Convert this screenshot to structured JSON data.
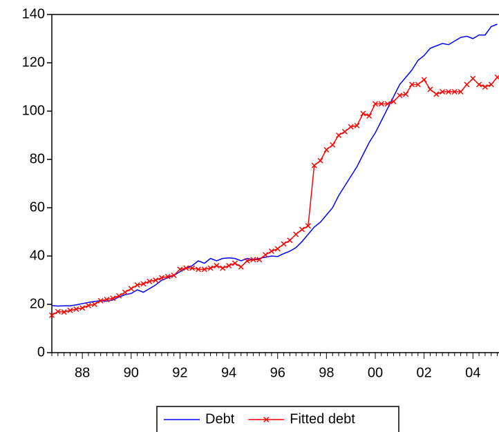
{
  "chart_data": {
    "type": "line",
    "categories": [
      null,
      null,
      null,
      null,
      null,
      "88",
      null,
      null,
      null,
      null,
      null,
      null,
      null,
      "90",
      null,
      null,
      null,
      null,
      null,
      null,
      null,
      "92",
      null,
      null,
      null,
      null,
      null,
      null,
      null,
      "94",
      null,
      null,
      null,
      null,
      null,
      null,
      null,
      "96",
      null,
      null,
      null,
      null,
      null,
      null,
      null,
      "98",
      null,
      null,
      null,
      null,
      null,
      null,
      null,
      "00",
      null,
      null,
      null,
      null,
      null,
      null,
      null,
      "02",
      null,
      null,
      null,
      null,
      null,
      null,
      null,
      "04",
      null,
      null,
      null,
      null
    ],
    "series": [
      {
        "name": "Debt",
        "color": "#0000ff",
        "values": [
          19.5,
          19.3,
          19.4,
          19.4,
          19.8,
          20.3,
          20.8,
          21.2,
          21.5,
          21.3,
          21.8,
          23,
          24,
          24.5,
          26,
          25,
          26.5,
          28,
          30,
          31,
          32,
          33.5,
          35,
          36,
          38,
          37,
          39,
          38,
          39,
          39.2,
          39,
          38,
          39,
          38.5,
          39,
          39.5,
          40,
          39.8,
          41,
          42,
          43.5,
          46,
          49,
          52,
          54,
          57,
          60,
          65,
          69,
          73,
          77,
          82,
          87,
          91,
          96,
          101,
          106,
          111,
          114,
          117,
          121,
          123,
          126,
          127,
          128,
          127.5,
          129,
          130.5,
          131,
          130,
          131.5,
          131.5,
          135,
          136
        ]
      },
      {
        "name": "Fitted debt",
        "color": "#ff0000",
        "marker": "x",
        "values": [
          15.5,
          17,
          16.8,
          17.5,
          18,
          18.5,
          19.5,
          20,
          21.5,
          22,
          22.5,
          23.5,
          25,
          26.5,
          28,
          28.5,
          29.5,
          30,
          31,
          31.5,
          32,
          34.5,
          35,
          35,
          34.5,
          34.5,
          35,
          36,
          35,
          36,
          37,
          35.5,
          38,
          38.5,
          38.5,
          40.5,
          42,
          43,
          45,
          46.5,
          49,
          51,
          52.5,
          77.5,
          79.5,
          84,
          86,
          90,
          91.5,
          93.5,
          94,
          99,
          98,
          103,
          103,
          103,
          104,
          106.5,
          107,
          111,
          111,
          113,
          109,
          107,
          108,
          108,
          108,
          108,
          111,
          113.5,
          111,
          110,
          111,
          114
        ]
      }
    ],
    "ylim": [
      0,
      140
    ],
    "yticks": [
      0,
      20,
      40,
      60,
      80,
      100,
      120,
      140
    ],
    "legend": "bottom"
  }
}
